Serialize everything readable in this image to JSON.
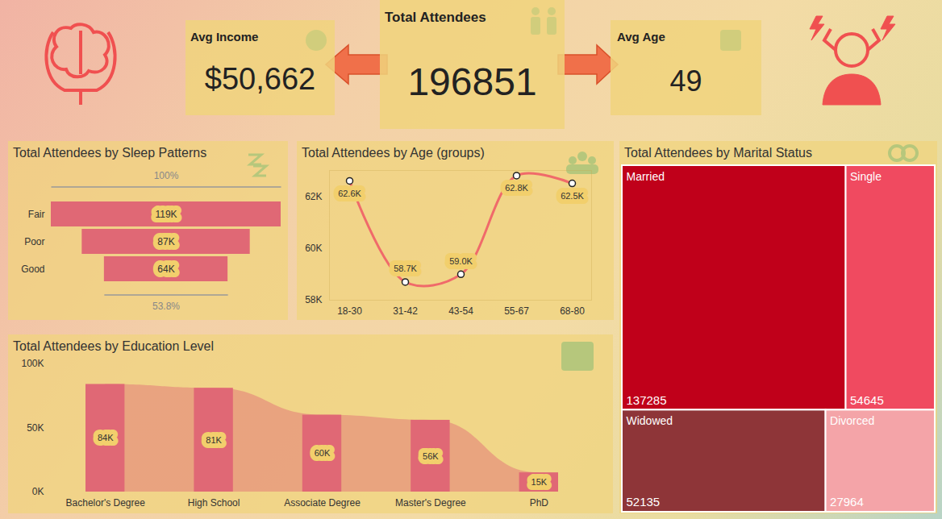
{
  "cards": [
    {
      "title": "Avg Income",
      "value": 50662,
      "value_label": "$50,662"
    },
    {
      "title": "Total Attendees",
      "value": 196851
    },
    {
      "title": "Avg Age",
      "value": 49
    }
  ],
  "chart_data": [
    {
      "type": "funnel",
      "title": "Total Attendees by Sleep Patterns",
      "categories": [
        "Fair",
        "Poor",
        "Good"
      ],
      "values": [
        119000,
        87000,
        64000
      ],
      "value_labels": [
        "119K",
        "87K",
        "64K"
      ],
      "annotations": [
        {
          "text": "100%",
          "category": "Fair"
        },
        {
          "text": "53.8%",
          "category": "Good"
        }
      ],
      "color": "#e06875",
      "data_labels": true,
      "tick_labels": "y"
    },
    {
      "type": "line",
      "title": "Total Attendees by Age (groups)",
      "categories": [
        "18-30",
        "31-42",
        "43-54",
        "55-67",
        "68-80"
      ],
      "values": [
        62600,
        58700,
        59000,
        62800,
        62500
      ],
      "value_labels": [
        "62.6K",
        "58.7K",
        "59.0K",
        "62.8K",
        "62.5K"
      ],
      "ylim": [
        58000,
        63000
      ],
      "yticks": [
        {
          "value": 58000,
          "label": "58K"
        },
        {
          "value": 60000,
          "label": "60K"
        },
        {
          "value": 62000,
          "label": "62K"
        }
      ],
      "color": "#f06a6a",
      "marker": "circle",
      "data_labels": true
    },
    {
      "type": "treemap",
      "title": "Total Attendees by Marital Status",
      "categories": [
        "Married",
        "Single",
        "Widowed",
        "Divorced"
      ],
      "values": [
        137285,
        54645,
        52135,
        27964
      ],
      "colors": [
        "#c0001a",
        "#f04a60",
        "#8e3538",
        "#f4a4a8"
      ],
      "data_labels": true,
      "tick_labels": false
    },
    {
      "type": "bar",
      "title": "Total Attendees by Education Level",
      "categories": [
        "Bachelor's Degree",
        "High School",
        "Associate Degree",
        "Master's Degree",
        "PhD"
      ],
      "values": [
        84000,
        81000,
        60000,
        56000,
        15000
      ],
      "value_labels": [
        "84K",
        "81K",
        "60K",
        "56K",
        "15K"
      ],
      "ylim": [
        0,
        100000
      ],
      "yticks": [
        {
          "value": 0,
          "label": "0K"
        },
        {
          "value": 50000,
          "label": "50K"
        },
        {
          "value": 100000,
          "label": "100K"
        }
      ],
      "color": "#e06875",
      "data_labels": true
    }
  ]
}
